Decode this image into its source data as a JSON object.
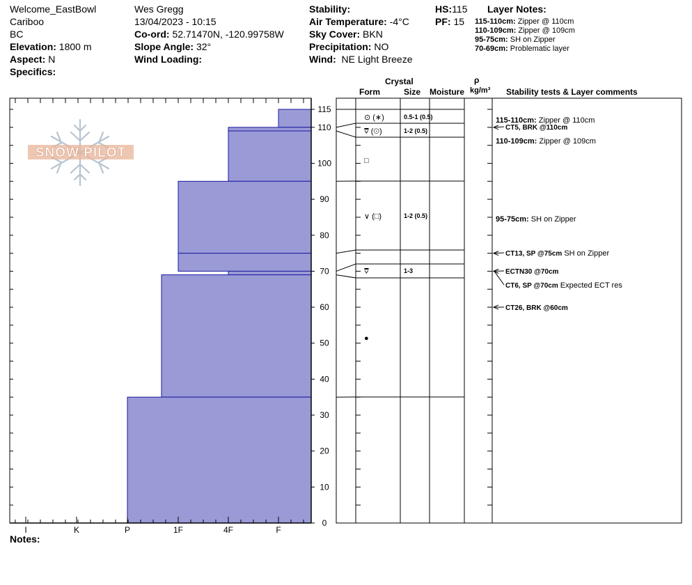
{
  "header": {
    "col1": {
      "location": "Welcome_EastBowl",
      "region": "Cariboo",
      "province": "BC",
      "elevation_label": "Elevation:",
      "elevation_value": "1800 m",
      "aspect_label": "Aspect:",
      "aspect_value": "N",
      "specifics_label": "Specifics:"
    },
    "col2": {
      "observer": "Wes Gregg",
      "datetime": "13/04/2023 - 10:15",
      "coord_label": "Co-ord:",
      "coord_value": "52.71470N, -120.99758W",
      "slope_label": "Slope Angle:",
      "slope_value": "32°",
      "wind_loading_label": "Wind Loading:"
    },
    "col3": {
      "stability_label": "Stability:",
      "air_temp_label": "Air Temperature:",
      "air_temp_value": "-4°C",
      "sky_label": "Sky Cover:",
      "sky_value": "BKN",
      "precip_label": "Precipitation:",
      "precip_value": "NO",
      "wind_label": "Wind:",
      "wind_value": "NE Light Breeze"
    },
    "col4": {
      "hs_label": "HS:",
      "hs_value": "115",
      "pf_label": "PF:",
      "pf_value": "15"
    },
    "layer_notes": {
      "title": "Layer Notes:",
      "items": [
        {
          "range": "115-110cm:",
          "text": "Zipper @ 110cm"
        },
        {
          "range": "110-109cm:",
          "text": "Zipper @ 109cm"
        },
        {
          "range": "95-75cm:",
          "text": "SH on Zipper"
        },
        {
          "range": "70-69cm:",
          "text": "Problematic layer"
        }
      ]
    }
  },
  "logo": {
    "text": "SNOW PILOT"
  },
  "table_headers": {
    "crystal": "Crystal",
    "form": "Form",
    "size": "Size",
    "moisture": "Moisture",
    "rho": "ρ",
    "density_unit": "kg/m³",
    "comments": "Stability tests & Layer comments"
  },
  "footer": {
    "notes_label": "Notes:"
  },
  "chart_data": {
    "type": "bar",
    "ylim": [
      0,
      115
    ],
    "hardness_axis": [
      "I",
      "K",
      "P",
      "1F",
      "4F",
      "F"
    ],
    "y_ticks": [
      0,
      10,
      20,
      30,
      40,
      50,
      60,
      70,
      80,
      90,
      100,
      110,
      115
    ],
    "layers": [
      {
        "top": 115,
        "bottom": 110,
        "hardness": "F"
      },
      {
        "top": 110,
        "bottom": 109,
        "hardness": "4F"
      },
      {
        "top": 109,
        "bottom": 95,
        "hardness": "4F"
      },
      {
        "top": 95,
        "bottom": 75,
        "hardness": "1F"
      },
      {
        "top": 75,
        "bottom": 70,
        "hardness": "1F"
      },
      {
        "top": 70,
        "bottom": 69,
        "hardness": "4F"
      },
      {
        "top": 69,
        "bottom": 35,
        "hardness": "1F-"
      },
      {
        "top": 35,
        "bottom": 0,
        "hardness": "P"
      }
    ],
    "crystal_rows": [
      {
        "form": "⊙ (∗)",
        "size": "0.5-1 (0.5)"
      },
      {
        "form": "⩢ (⊙)",
        "size": "1-2 (0.5)"
      },
      {
        "form": "□",
        "size": ""
      },
      {
        "form": "∨ (□)",
        "size": "1-2 (0.5)"
      },
      {
        "form": "⩢",
        "size": "1-3"
      },
      {
        "form": "●",
        "size": ""
      }
    ],
    "comments": [
      {
        "range": "115-110cm:",
        "text": "Zipper @ 110cm"
      },
      {
        "test": "CT5, BRK @110cm",
        "text": ""
      },
      {
        "range": "110-109cm:",
        "text": "Zipper @ 109cm"
      },
      {
        "range": "95-75cm:",
        "text": "SH on Zipper"
      },
      {
        "test": "CT13, SP @75cm",
        "text": "SH on Zipper"
      },
      {
        "test": "ECTN30 @70cm",
        "text": ""
      },
      {
        "test": "CT6, SP @70cm",
        "text": "Expected ECT res"
      },
      {
        "test": "CT26, BRK @60cm",
        "text": ""
      }
    ]
  }
}
